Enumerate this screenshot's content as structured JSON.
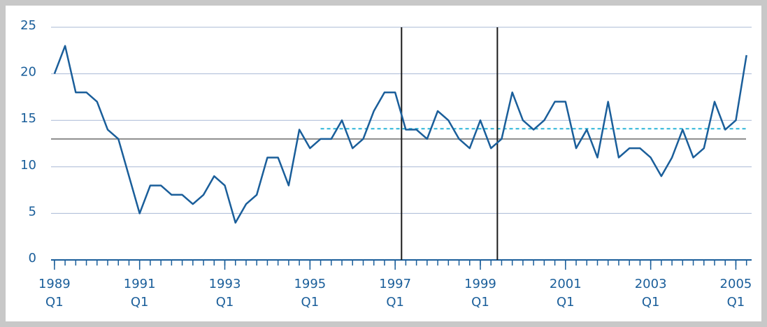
{
  "chart_data": {
    "type": "line",
    "x": [
      1989,
      1989.25,
      1989.5,
      1989.75,
      1990,
      1990.25,
      1990.5,
      1990.75,
      1991,
      1991.25,
      1991.5,
      1991.75,
      1992,
      1992.25,
      1992.5,
      1992.75,
      1993,
      1993.25,
      1993.5,
      1993.75,
      1994,
      1994.25,
      1994.5,
      1994.75,
      1995,
      1995.25,
      1995.5,
      1995.75,
      1996,
      1996.25,
      1996.5,
      1996.75,
      1997,
      1997.25,
      1997.5,
      1997.75,
      1998,
      1998.25,
      1998.5,
      1998.75,
      1999,
      1999.25,
      1999.5,
      1999.75,
      2000,
      2000.25,
      2000.5,
      2000.75,
      2001,
      2001.25,
      2001.5,
      2001.75,
      2002,
      2002.25,
      2002.5,
      2002.75,
      2003,
      2003.25,
      2003.5,
      2003.75,
      2004,
      2004.25,
      2004.5,
      2004.75,
      2005,
      2005.25
    ],
    "series": [
      {
        "color": "#1a5e9a",
        "values": [
          20,
          23,
          18,
          18,
          17,
          14,
          13,
          9,
          5,
          8,
          8,
          7,
          7,
          6,
          7,
          9,
          8,
          4,
          6,
          7,
          11,
          11,
          8,
          14,
          12,
          13,
          13,
          15,
          12,
          13,
          16,
          18,
          18,
          14,
          14,
          13,
          16,
          15,
          13,
          12,
          15,
          12,
          13,
          18,
          15,
          14,
          15,
          17,
          17,
          12,
          14,
          11,
          17,
          11,
          12,
          12,
          11,
          9,
          11,
          14,
          11,
          12,
          17,
          14,
          15,
          22
        ]
      }
    ],
    "xlim": [
      1988.92,
      2005.37
    ],
    "xticks": [
      {
        "value": 1989,
        "label": "1989\nQ1"
      },
      {
        "value": 1991,
        "label": "1991\nQ1"
      },
      {
        "value": 1993,
        "label": "1993\nQ1"
      },
      {
        "value": 1995,
        "label": "1995\nQ1"
      },
      {
        "value": 1997,
        "label": "1997\nQ1"
      },
      {
        "value": 1999,
        "label": "1999\nQ1"
      },
      {
        "value": 2001,
        "label": "2001\nQ1"
      },
      {
        "value": 2003,
        "label": "2003\nQ1"
      },
      {
        "value": 2005,
        "label": "2005\nQ1"
      }
    ],
    "ylim": [
      0,
      25
    ],
    "yticks": [
      0,
      5,
      10,
      15,
      20,
      25
    ],
    "grid": true,
    "hlines": [
      {
        "y": 13,
        "color": "#8c8c8c",
        "dashed": false
      },
      {
        "y": 14.1,
        "xmin": 1995.25,
        "color": "#2bb5d8",
        "dashed": true
      }
    ],
    "vlines": [
      {
        "x": 1997.15,
        "color": "#1a1a1a"
      },
      {
        "x": 1999.4,
        "color": "#1a1a1a"
      }
    ]
  }
}
